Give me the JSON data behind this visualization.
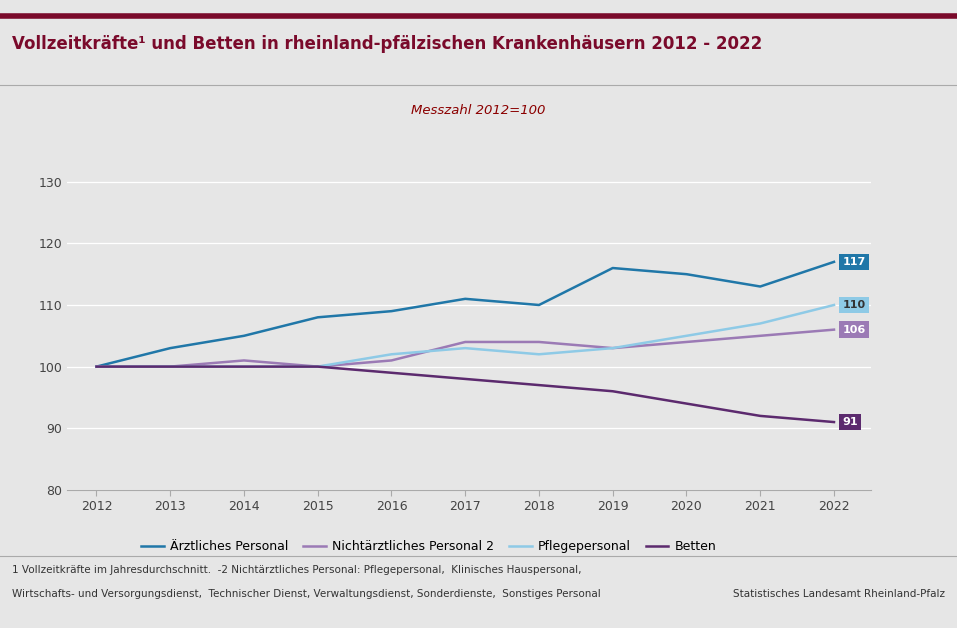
{
  "title": "Vollzeitkräfte¹ und Betten in rheinland-pfälzischen Krankenhäusern 2012 - 2022",
  "subtitle": "Messzahl 2012=100",
  "years": [
    2012,
    2013,
    2014,
    2015,
    2016,
    2017,
    2018,
    2019,
    2020,
    2021,
    2022
  ],
  "aerztliches": [
    100,
    103,
    105,
    108,
    109,
    111,
    110,
    116,
    115,
    113,
    117
  ],
  "nichtaerztliches": [
    100,
    100,
    101,
    100,
    101,
    104,
    104,
    103,
    104,
    105,
    106
  ],
  "pflegepersonal": [
    100,
    100,
    100,
    100,
    102,
    103,
    102,
    103,
    105,
    107,
    110
  ],
  "betten": [
    100,
    100,
    100,
    100,
    99,
    98,
    97,
    96,
    94,
    92,
    91
  ],
  "colors": {
    "aerztliches": "#2077a8",
    "nichtaerztliches": "#9b7ab5",
    "pflegepersonal": "#8ecae6",
    "betten": "#5c2a6e"
  },
  "end_label_bg": {
    "aerztliches": "#2077a8",
    "pflegepersonal": "#8ecae6",
    "nichtaerztliches": "#9b7ab5",
    "betten": "#5c2a6e"
  },
  "end_label_fc": {
    "aerztliches": "white",
    "pflegepersonal": "#333333",
    "nichtaerztliches": "white",
    "betten": "white"
  },
  "ylim": [
    80,
    133
  ],
  "yticks": [
    80,
    90,
    100,
    110,
    120,
    130
  ],
  "background_color": "#e6e6e6",
  "title_color": "#7a0a2b",
  "subtitle_color": "#8b0000",
  "footnote1": "1 Vollzeitkräfte im Jahresdurchschnitt.  -2 Nichtärztliches Personal: Pflegepersonal,  Klinisches Hauspersonal,",
  "footnote2": "Wirtschafts- und Versorgungsdienst,  Technischer Dienst, Verwaltungsdienst, Sonderdienste,  Sonstiges Personal",
  "source": "Statistisches Landesamt Rheinland-Pfalz",
  "legend_labels": [
    "Ärztliches Personal",
    "Nichtärztliches Personal 2",
    "Pflegepersonal",
    "Betten"
  ]
}
